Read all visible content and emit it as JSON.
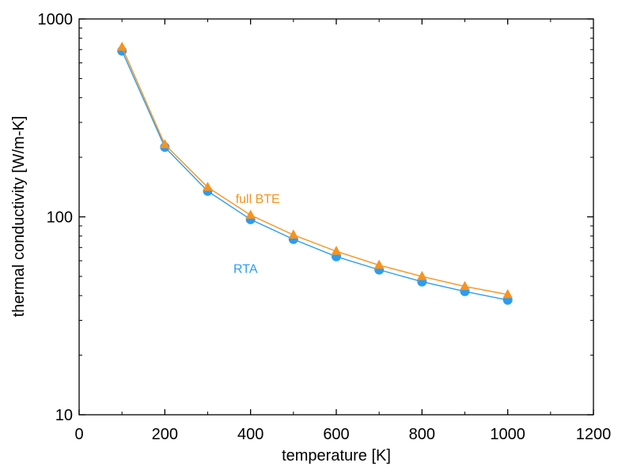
{
  "chart_data": {
    "type": "line",
    "title": "",
    "xlabel": "temperature [K]",
    "ylabel": "thermal conductivity [W/m-K]",
    "xlim": [
      0,
      1200
    ],
    "ylim": [
      10,
      1000
    ],
    "yscale": "log",
    "grid": false,
    "x_ticks": [
      {
        "value": 0,
        "label": "0"
      },
      {
        "value": 200,
        "label": "200"
      },
      {
        "value": 400,
        "label": "400"
      },
      {
        "value": 600,
        "label": "600"
      },
      {
        "value": 800,
        "label": "800"
      },
      {
        "value": 1000,
        "label": "1000"
      },
      {
        "value": 1200,
        "label": "1200"
      }
    ],
    "y_ticks": [
      {
        "value": 10,
        "label": "10"
      },
      {
        "value": 100,
        "label": "100"
      },
      {
        "value": 1000,
        "label": "1000"
      }
    ],
    "x": [
      100,
      200,
      300,
      400,
      500,
      600,
      700,
      800,
      900,
      1000
    ],
    "series": [
      {
        "name": "RTA",
        "marker": "circle",
        "color": "#2a9df4",
        "values": [
          690,
          225,
          135,
          97,
          77,
          63,
          54,
          47,
          42,
          38
        ],
        "label_at": {
          "x": 360,
          "y": 55
        }
      },
      {
        "name": "full BTE",
        "marker": "triangle",
        "color": "#f7931e",
        "values": [
          720,
          232,
          141,
          102,
          81,
          67,
          57,
          50,
          44.5,
          40.5
        ],
        "label_at": {
          "x": 365,
          "y": 124
        }
      }
    ]
  }
}
